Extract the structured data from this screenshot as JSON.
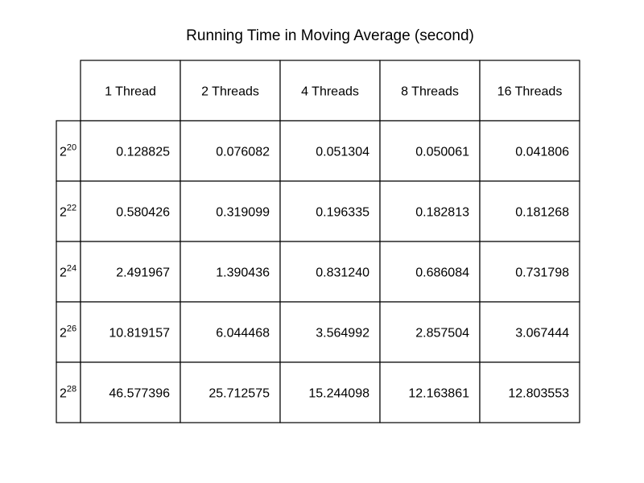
{
  "chart_data": {
    "type": "table",
    "title": "Running Time in Moving Average (second)",
    "col_labels": [
      "1 Thread",
      "2 Threads",
      "4 Threads",
      "8 Threads",
      "16 Threads"
    ],
    "row_labels": [
      {
        "base": "2",
        "exp": "20"
      },
      {
        "base": "2",
        "exp": "22"
      },
      {
        "base": "2",
        "exp": "24"
      },
      {
        "base": "2",
        "exp": "26"
      },
      {
        "base": "2",
        "exp": "28"
      }
    ],
    "cells": [
      [
        "0.128825",
        "0.076082",
        "0.051304",
        "0.050061",
        "0.041806"
      ],
      [
        "0.580426",
        "0.319099",
        "0.196335",
        "0.182813",
        "0.181268"
      ],
      [
        "2.491967",
        "1.390436",
        "0.831240",
        "0.686084",
        "0.731798"
      ],
      [
        "10.819157",
        "6.044468",
        "3.564992",
        "2.857504",
        "3.067444"
      ],
      [
        "46.577396",
        "25.712575",
        "15.244098",
        "12.163861",
        "12.803553"
      ]
    ]
  }
}
